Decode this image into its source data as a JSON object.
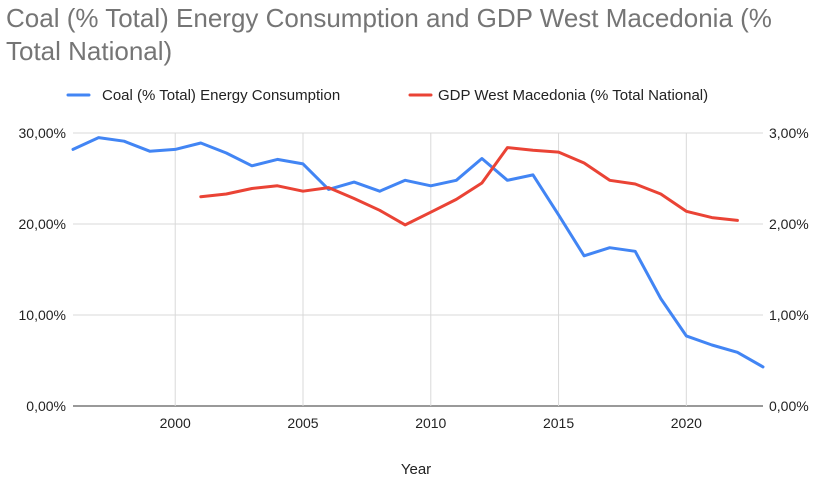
{
  "chart_data": {
    "type": "line",
    "title": "Coal (% Total) Energy Consumption and GDP West Macedonia (% Total National)",
    "xlabel": "Year",
    "ylabel_left": "",
    "ylabel_right": "",
    "xlim": [
      1996,
      2023
    ],
    "x_ticks": [
      2000,
      2005,
      2010,
      2015,
      2020
    ],
    "x_tick_labels": [
      "2000",
      "2005",
      "2010",
      "2015",
      "2020"
    ],
    "ylim_left": [
      0,
      30
    ],
    "y_ticks_left": [
      0,
      10,
      20,
      30
    ],
    "y_tick_labels_left": [
      "0,00%",
      "10,00%",
      "20,00%",
      "30,00%"
    ],
    "ylim_right": [
      0,
      3
    ],
    "y_ticks_right": [
      0,
      1,
      2,
      3
    ],
    "y_tick_labels_right": [
      "0,00%",
      "1,00%",
      "2,00%",
      "3,00%"
    ],
    "legend_position": "top",
    "grid": true,
    "series": [
      {
        "name": "Coal (% Total) Energy Consumption",
        "color": "#4285f4",
        "axis": "left",
        "x": [
          1996,
          1997,
          1998,
          1999,
          2000,
          2001,
          2002,
          2003,
          2004,
          2005,
          2006,
          2007,
          2008,
          2009,
          2010,
          2011,
          2012,
          2013,
          2014,
          2015,
          2016,
          2017,
          2018,
          2019,
          2020,
          2021,
          2022,
          2023
        ],
        "values": [
          28.2,
          29.5,
          29.1,
          28.0,
          28.2,
          28.9,
          27.8,
          26.4,
          27.1,
          26.6,
          23.8,
          24.6,
          23.6,
          24.8,
          24.2,
          24.8,
          27.2,
          24.8,
          25.4,
          21.0,
          16.5,
          17.4,
          17.0,
          11.8,
          7.7,
          6.7,
          5.9,
          4.3
        ]
      },
      {
        "name": "GDP West Macedonia (% Total National)",
        "color": "#ea4335",
        "axis": "right",
        "x": [
          2001,
          2002,
          2003,
          2004,
          2005,
          2006,
          2007,
          2008,
          2009,
          2010,
          2011,
          2012,
          2013,
          2014,
          2015,
          2016,
          2017,
          2018,
          2019,
          2020,
          2021,
          2022
        ],
        "values": [
          2.3,
          2.33,
          2.39,
          2.42,
          2.36,
          2.4,
          2.28,
          2.15,
          1.99,
          2.13,
          2.27,
          2.45,
          2.84,
          2.81,
          2.79,
          2.67,
          2.48,
          2.44,
          2.33,
          2.14,
          2.07,
          2.04
        ]
      }
    ]
  }
}
